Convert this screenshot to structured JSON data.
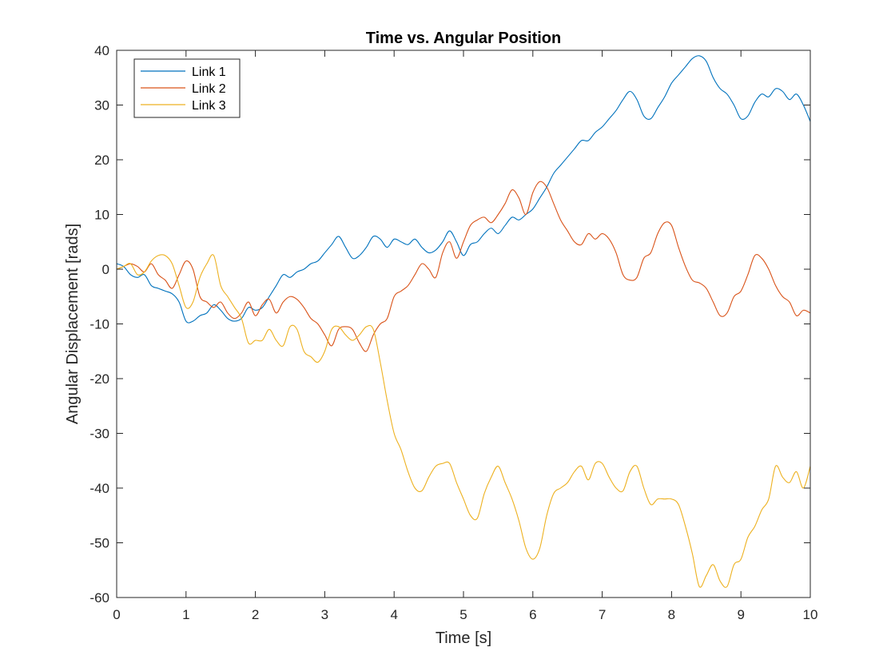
{
  "chart_data": {
    "type": "line",
    "title": "Time vs. Angular Position",
    "xlabel": "Time [s]",
    "ylabel": "Angular Displacement [rads]",
    "xlim": [
      0,
      10
    ],
    "ylim": [
      -60,
      40
    ],
    "xticks": [
      0,
      1,
      2,
      3,
      4,
      5,
      6,
      7,
      8,
      9,
      10
    ],
    "yticks": [
      -60,
      -50,
      -40,
      -30,
      -20,
      -10,
      0,
      10,
      20,
      30,
      40
    ],
    "xtick_labels": [
      "0",
      "1",
      "2",
      "3",
      "4",
      "5",
      "6",
      "7",
      "8",
      "9",
      "10"
    ],
    "ytick_labels": [
      "-60",
      "-50",
      "-40",
      "-30",
      "-20",
      "-10",
      "0",
      "10",
      "20",
      "30",
      "40"
    ],
    "grid": false,
    "legend_position": "top-left",
    "series": [
      {
        "name": "Link 1",
        "color": "#0072BD",
        "x": [
          0,
          0.1,
          0.2,
          0.3,
          0.4,
          0.5,
          0.6,
          0.7,
          0.8,
          0.9,
          1.0,
          1.1,
          1.2,
          1.3,
          1.4,
          1.5,
          1.6,
          1.7,
          1.8,
          1.9,
          2.0,
          2.1,
          2.2,
          2.3,
          2.4,
          2.5,
          2.6,
          2.7,
          2.8,
          2.9,
          3.0,
          3.1,
          3.2,
          3.3,
          3.4,
          3.5,
          3.6,
          3.7,
          3.8,
          3.9,
          4.0,
          4.1,
          4.2,
          4.3,
          4.4,
          4.5,
          4.6,
          4.7,
          4.8,
          4.9,
          5.0,
          5.1,
          5.2,
          5.3,
          5.4,
          5.5,
          5.6,
          5.7,
          5.8,
          5.9,
          6.0,
          6.1,
          6.2,
          6.3,
          6.4,
          6.5,
          6.6,
          6.7,
          6.8,
          6.9,
          7.0,
          7.1,
          7.2,
          7.3,
          7.4,
          7.5,
          7.6,
          7.7,
          7.8,
          7.9,
          8.0,
          8.1,
          8.2,
          8.3,
          8.4,
          8.5,
          8.6,
          8.7,
          8.8,
          8.9,
          9.0,
          9.1,
          9.2,
          9.3,
          9.4,
          9.5,
          9.6,
          9.7,
          9.8,
          9.9,
          10.0
        ],
        "y": [
          1,
          0.5,
          -1,
          -1.5,
          -1,
          -3,
          -3.5,
          -4,
          -4.5,
          -6,
          -9.5,
          -9.5,
          -8.5,
          -8,
          -6.5,
          -7.5,
          -9,
          -9.5,
          -9,
          -7,
          -7.5,
          -7,
          -5,
          -3,
          -1,
          -1.5,
          -0.5,
          0,
          1,
          1.5,
          3,
          4.5,
          6,
          4,
          2,
          2.5,
          4,
          6,
          5.5,
          4,
          5.5,
          5,
          4.5,
          5.5,
          4,
          3,
          3.5,
          5,
          7,
          5,
          2.5,
          4.5,
          5,
          6.5,
          7.5,
          6.5,
          8,
          9.5,
          9,
          10,
          11,
          13,
          15,
          17.5,
          19,
          20.5,
          22,
          23.5,
          23.5,
          25,
          26,
          27.5,
          29,
          31,
          32.5,
          31,
          28,
          27.5,
          29.5,
          31.5,
          34,
          35.5,
          37,
          38.5,
          39,
          38,
          35,
          33,
          32,
          30,
          27.5,
          28,
          30.5,
          32,
          31.5,
          33,
          32.5,
          31,
          32,
          30,
          27
        ]
      },
      {
        "name": "Link 2",
        "color": "#D95319",
        "x": [
          0,
          0.1,
          0.2,
          0.3,
          0.4,
          0.5,
          0.6,
          0.7,
          0.8,
          0.9,
          1.0,
          1.1,
          1.2,
          1.3,
          1.4,
          1.5,
          1.6,
          1.7,
          1.8,
          1.9,
          2.0,
          2.1,
          2.2,
          2.3,
          2.4,
          2.5,
          2.6,
          2.7,
          2.8,
          2.9,
          3.0,
          3.1,
          3.2,
          3.3,
          3.4,
          3.5,
          3.6,
          3.7,
          3.8,
          3.9,
          4.0,
          4.1,
          4.2,
          4.3,
          4.4,
          4.5,
          4.6,
          4.7,
          4.8,
          4.9,
          5.0,
          5.1,
          5.2,
          5.3,
          5.4,
          5.5,
          5.6,
          5.7,
          5.8,
          5.9,
          6.0,
          6.1,
          6.2,
          6.3,
          6.4,
          6.5,
          6.6,
          6.7,
          6.8,
          6.9,
          7.0,
          7.1,
          7.2,
          7.3,
          7.4,
          7.5,
          7.6,
          7.7,
          7.8,
          7.9,
          8.0,
          8.1,
          8.2,
          8.3,
          8.4,
          8.5,
          8.6,
          8.7,
          8.8,
          8.9,
          9.0,
          9.1,
          9.2,
          9.3,
          9.4,
          9.5,
          9.6,
          9.7,
          9.8,
          9.9,
          10.0
        ],
        "y": [
          0,
          0.5,
          1,
          0.5,
          -0.5,
          1,
          -1,
          -2,
          -3.5,
          -1,
          1.5,
          0,
          -5,
          -6,
          -7,
          -6,
          -8,
          -9,
          -8,
          -6,
          -8.5,
          -6.5,
          -5.5,
          -8,
          -6,
          -5,
          -5.5,
          -7,
          -9,
          -10,
          -12,
          -14,
          -11,
          -10.5,
          -11,
          -13.5,
          -15,
          -12,
          -10,
          -9,
          -5,
          -4,
          -3,
          -1,
          1,
          0,
          -1.5,
          3,
          5,
          2,
          5,
          8,
          9,
          9.5,
          8.5,
          10,
          12,
          14.5,
          13,
          10,
          14,
          16,
          15,
          12,
          9,
          7,
          5,
          4.5,
          6.5,
          5.5,
          6.5,
          5.5,
          3,
          -1,
          -2,
          -1.5,
          2,
          3,
          6.5,
          8.5,
          8,
          4,
          0.5,
          -2,
          -2.5,
          -3.5,
          -6,
          -8.5,
          -8,
          -5,
          -4,
          -1,
          2.5,
          2,
          0,
          -3,
          -5,
          -6,
          -8.5,
          -7.5,
          -8
        ]
      },
      {
        "name": "Link 3",
        "color": "#EDB120",
        "x": [
          0,
          0.1,
          0.2,
          0.3,
          0.4,
          0.5,
          0.6,
          0.7,
          0.8,
          0.9,
          1.0,
          1.1,
          1.2,
          1.3,
          1.4,
          1.5,
          1.6,
          1.7,
          1.8,
          1.9,
          2.0,
          2.1,
          2.2,
          2.3,
          2.4,
          2.5,
          2.6,
          2.7,
          2.8,
          2.9,
          3.0,
          3.1,
          3.2,
          3.3,
          3.4,
          3.5,
          3.6,
          3.7,
          3.8,
          3.9,
          4.0,
          4.1,
          4.2,
          4.3,
          4.4,
          4.5,
          4.6,
          4.7,
          4.8,
          4.9,
          5.0,
          5.1,
          5.2,
          5.3,
          5.4,
          5.5,
          5.6,
          5.7,
          5.8,
          5.9,
          6.0,
          6.1,
          6.2,
          6.3,
          6.4,
          6.5,
          6.6,
          6.7,
          6.8,
          6.9,
          7.0,
          7.1,
          7.2,
          7.3,
          7.4,
          7.5,
          7.6,
          7.7,
          7.8,
          7.9,
          8.0,
          8.1,
          8.2,
          8.3,
          8.4,
          8.5,
          8.6,
          8.7,
          8.8,
          8.9,
          9.0,
          9.1,
          9.2,
          9.3,
          9.4,
          9.5,
          9.6,
          9.7,
          9.8,
          9.9,
          10.0
        ],
        "y": [
          0,
          0.5,
          1,
          -1,
          -0.5,
          1.5,
          2.5,
          2.5,
          1,
          -3,
          -7,
          -6,
          -1.5,
          1,
          2.5,
          -3,
          -5,
          -7,
          -9,
          -13.5,
          -13,
          -13,
          -11,
          -13,
          -14,
          -10.5,
          -11,
          -15,
          -16,
          -17,
          -15,
          -11,
          -10.5,
          -12,
          -13,
          -12,
          -10.5,
          -11,
          -17,
          -24,
          -30,
          -33,
          -37,
          -40,
          -40.5,
          -38,
          -36,
          -35.5,
          -35.5,
          -39,
          -42,
          -45,
          -45.5,
          -41,
          -38,
          -36,
          -39,
          -42,
          -46,
          -51,
          -53,
          -51,
          -45,
          -41,
          -40,
          -39,
          -37,
          -36,
          -38.5,
          -35.5,
          -35.5,
          -38,
          -40,
          -40.5,
          -37,
          -36,
          -40,
          -43,
          -42,
          -42,
          -42,
          -43,
          -47,
          -52,
          -58,
          -56,
          -54,
          -57,
          -58,
          -54,
          -53,
          -49,
          -47,
          -44,
          -42,
          -36,
          -38,
          -39,
          -37,
          -40,
          -36
        ]
      }
    ]
  }
}
